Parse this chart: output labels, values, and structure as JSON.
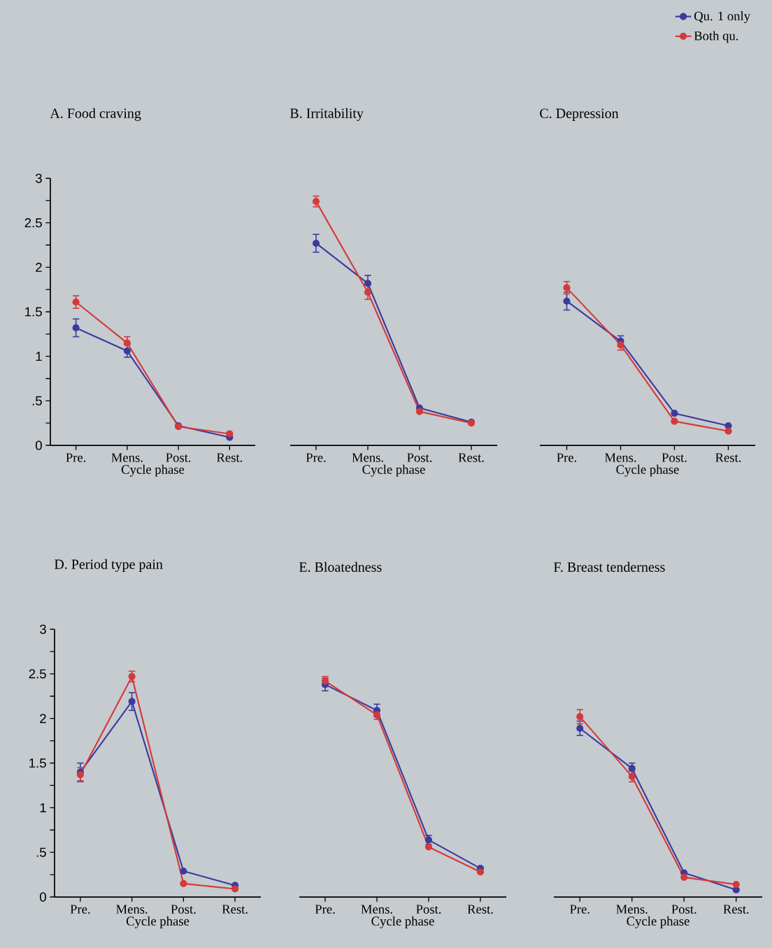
{
  "chart_data": [
    {
      "type": "line",
      "title": "A.  Food craving",
      "xlabel": "Cycle phase",
      "categories": [
        "Pre.",
        "Mens.",
        "Post.",
        "Rest."
      ],
      "ylim": [
        0,
        3
      ],
      "yticks": [
        0,
        {
          "value": 0.5,
          "label": ".5"
        },
        1,
        1.5,
        2,
        2.5,
        3
      ],
      "marker": "circle",
      "series": [
        {
          "color": "#3b3b9e",
          "values": [
            1.32,
            1.06,
            0.22,
            0.09
          ],
          "errors": [
            0.1,
            0.07,
            null,
            null
          ]
        },
        {
          "color": "#d43a3a",
          "values": [
            1.61,
            1.15,
            0.21,
            0.13
          ],
          "errors": [
            0.07,
            0.07,
            null,
            null
          ]
        }
      ]
    },
    {
      "type": "line",
      "title": "B.  Irritability",
      "xlabel": "Cycle phase",
      "categories": [
        "Pre.",
        "Mens.",
        "Post.",
        "Rest."
      ],
      "ylim": [
        0,
        3
      ],
      "tick_labels": "x",
      "marker": "circle",
      "series": [
        {
          "color": "#3b3b9e",
          "values": [
            2.27,
            1.82,
            0.42,
            0.26
          ],
          "errors": [
            0.1,
            0.09,
            null,
            null
          ]
        },
        {
          "color": "#d43a3a",
          "values": [
            2.74,
            1.72,
            0.38,
            0.25
          ],
          "errors": [
            0.06,
            0.08,
            null,
            null
          ]
        }
      ]
    },
    {
      "type": "line",
      "title": "C.  Depression",
      "xlabel": "Cycle phase",
      "categories": [
        "Pre.",
        "Mens.",
        "Post.",
        "Rest."
      ],
      "ylim": [
        0,
        3
      ],
      "tick_labels": "x",
      "marker": "circle",
      "legend": "top right",
      "series": [
        {
          "name": "Qu. 1 only",
          "color": "#3b3b9e",
          "values": [
            1.62,
            1.17,
            0.36,
            0.22
          ],
          "errors": [
            0.1,
            0.06,
            null,
            null
          ]
        },
        {
          "name": "Both qu.",
          "color": "#d43a3a",
          "values": [
            1.77,
            1.13,
            0.27,
            0.16
          ],
          "errors": [
            0.07,
            0.06,
            null,
            null
          ]
        }
      ]
    },
    {
      "type": "line",
      "title": "D.  Period type pain",
      "xlabel": "Cycle phase",
      "categories": [
        "Pre.",
        "Mens.",
        "Post.",
        "Rest."
      ],
      "ylim": [
        0,
        3
      ],
      "yticks": [
        0,
        {
          "value": 0.5,
          "label": ".5"
        },
        1,
        1.5,
        2,
        2.5,
        3
      ],
      "marker": "circle",
      "series": [
        {
          "color": "#3b3b9e",
          "values": [
            1.4,
            2.19,
            0.29,
            0.13
          ],
          "errors": [
            0.1,
            0.1,
            null,
            null
          ]
        },
        {
          "color": "#d43a3a",
          "values": [
            1.37,
            2.47,
            0.15,
            0.09
          ],
          "errors": [
            0.08,
            0.06,
            null,
            null
          ]
        }
      ]
    },
    {
      "type": "line",
      "title": "E.  Bloatedness",
      "xlabel": "Cycle phase",
      "categories": [
        "Pre.",
        "Mens.",
        "Post.",
        "Rest."
      ],
      "ylim": [
        0,
        3
      ],
      "tick_labels": "x",
      "marker": "circle",
      "series": [
        {
          "color": "#3b3b9e",
          "values": [
            2.38,
            2.09,
            0.64,
            0.32
          ],
          "errors": [
            0.07,
            0.07,
            0.05,
            null
          ]
        },
        {
          "color": "#d43a3a",
          "values": [
            2.42,
            2.04,
            0.56,
            0.28
          ],
          "errors": [
            0.05,
            0.05,
            null,
            null
          ]
        }
      ]
    },
    {
      "type": "line",
      "title": "F.  Breast tenderness",
      "xlabel": "Cycle phase",
      "categories": [
        "Pre.",
        "Mens.",
        "Post.",
        "Rest."
      ],
      "ylim": [
        0,
        3
      ],
      "tick_labels": "x",
      "marker": "circle",
      "series": [
        {
          "color": "#3b3b9e",
          "values": [
            1.89,
            1.44,
            0.27,
            0.08
          ],
          "errors": [
            0.08,
            0.06,
            null,
            null
          ]
        },
        {
          "color": "#d43a3a",
          "values": [
            2.02,
            1.35,
            0.22,
            0.14
          ],
          "errors": [
            0.08,
            0.06,
            null,
            null
          ]
        }
      ]
    }
  ]
}
